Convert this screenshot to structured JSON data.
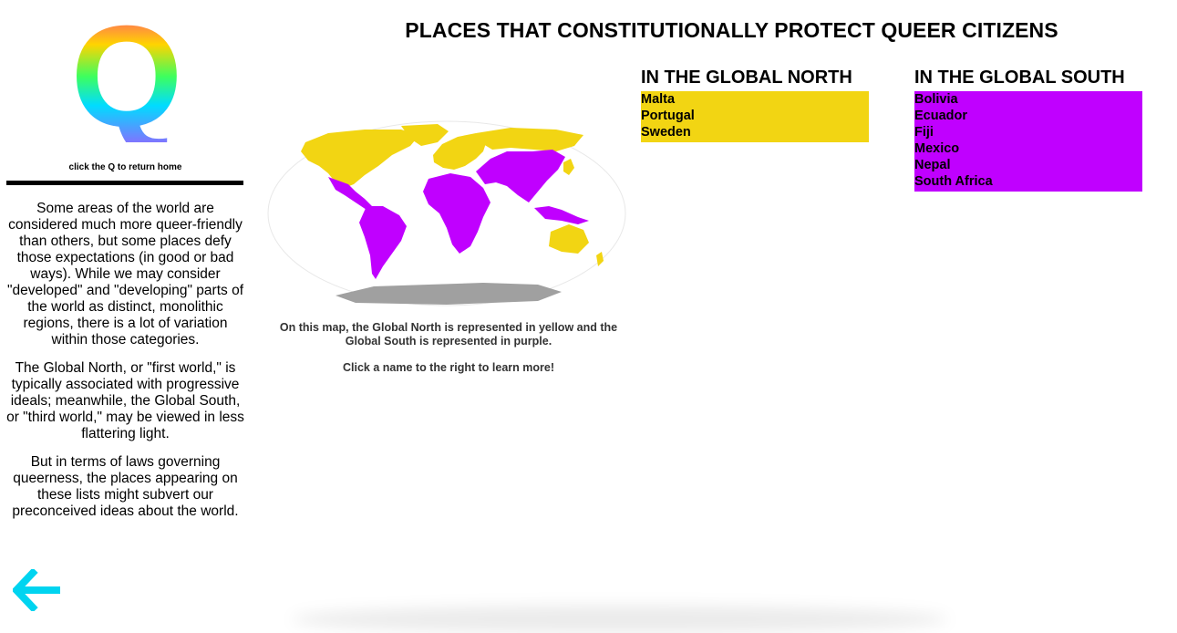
{
  "colors": {
    "north": "#f2d513",
    "south": "#c000ff",
    "antarctica": "#a0a0a0",
    "back_arrow": "#00d4f0",
    "logo_gradient": [
      "#ff1aa8",
      "#ffd400",
      "#3dff5e",
      "#00dcff",
      "#b14cff"
    ]
  },
  "sidebar": {
    "logo_letter": "Q",
    "home_hint": "click the Q to return home",
    "intro_paragraphs": [
      "Some areas of the world are considered much more queer-friendly than others, but some places defy those expectations (in good or bad ways). While we may consider \"developed\" and \"developing\" parts of the world as distinct, monolithic regions, there is a lot of variation within those categories.",
      "The Global North, or \"first world,\" is typically associated with progressive ideals; meanwhile, the Global South, or \"third world,\" may be viewed in less flattering light.",
      "But in terms of laws governing queerness, the places appearing on these lists might subvert our preconceived ideas about the world."
    ],
    "back_icon": "arrow-left-icon"
  },
  "main": {
    "title": "PLACES THAT CONSTITUTIONALLY PROTECT QUEER CITIZENS",
    "map_caption": "On this map, the Global North is represented in yellow and the Global South is represented in purple.",
    "map_cta": "Click a name to the right to learn more!"
  },
  "north": {
    "heading": "IN THE GLOBAL NORTH",
    "places": [
      "Malta",
      "Portugal",
      "Sweden"
    ]
  },
  "south": {
    "heading": "IN THE GLOBAL SOUTH",
    "places": [
      "Bolivia",
      "Ecuador",
      "Fiji",
      "Mexico",
      "Nepal",
      "South Africa"
    ]
  }
}
